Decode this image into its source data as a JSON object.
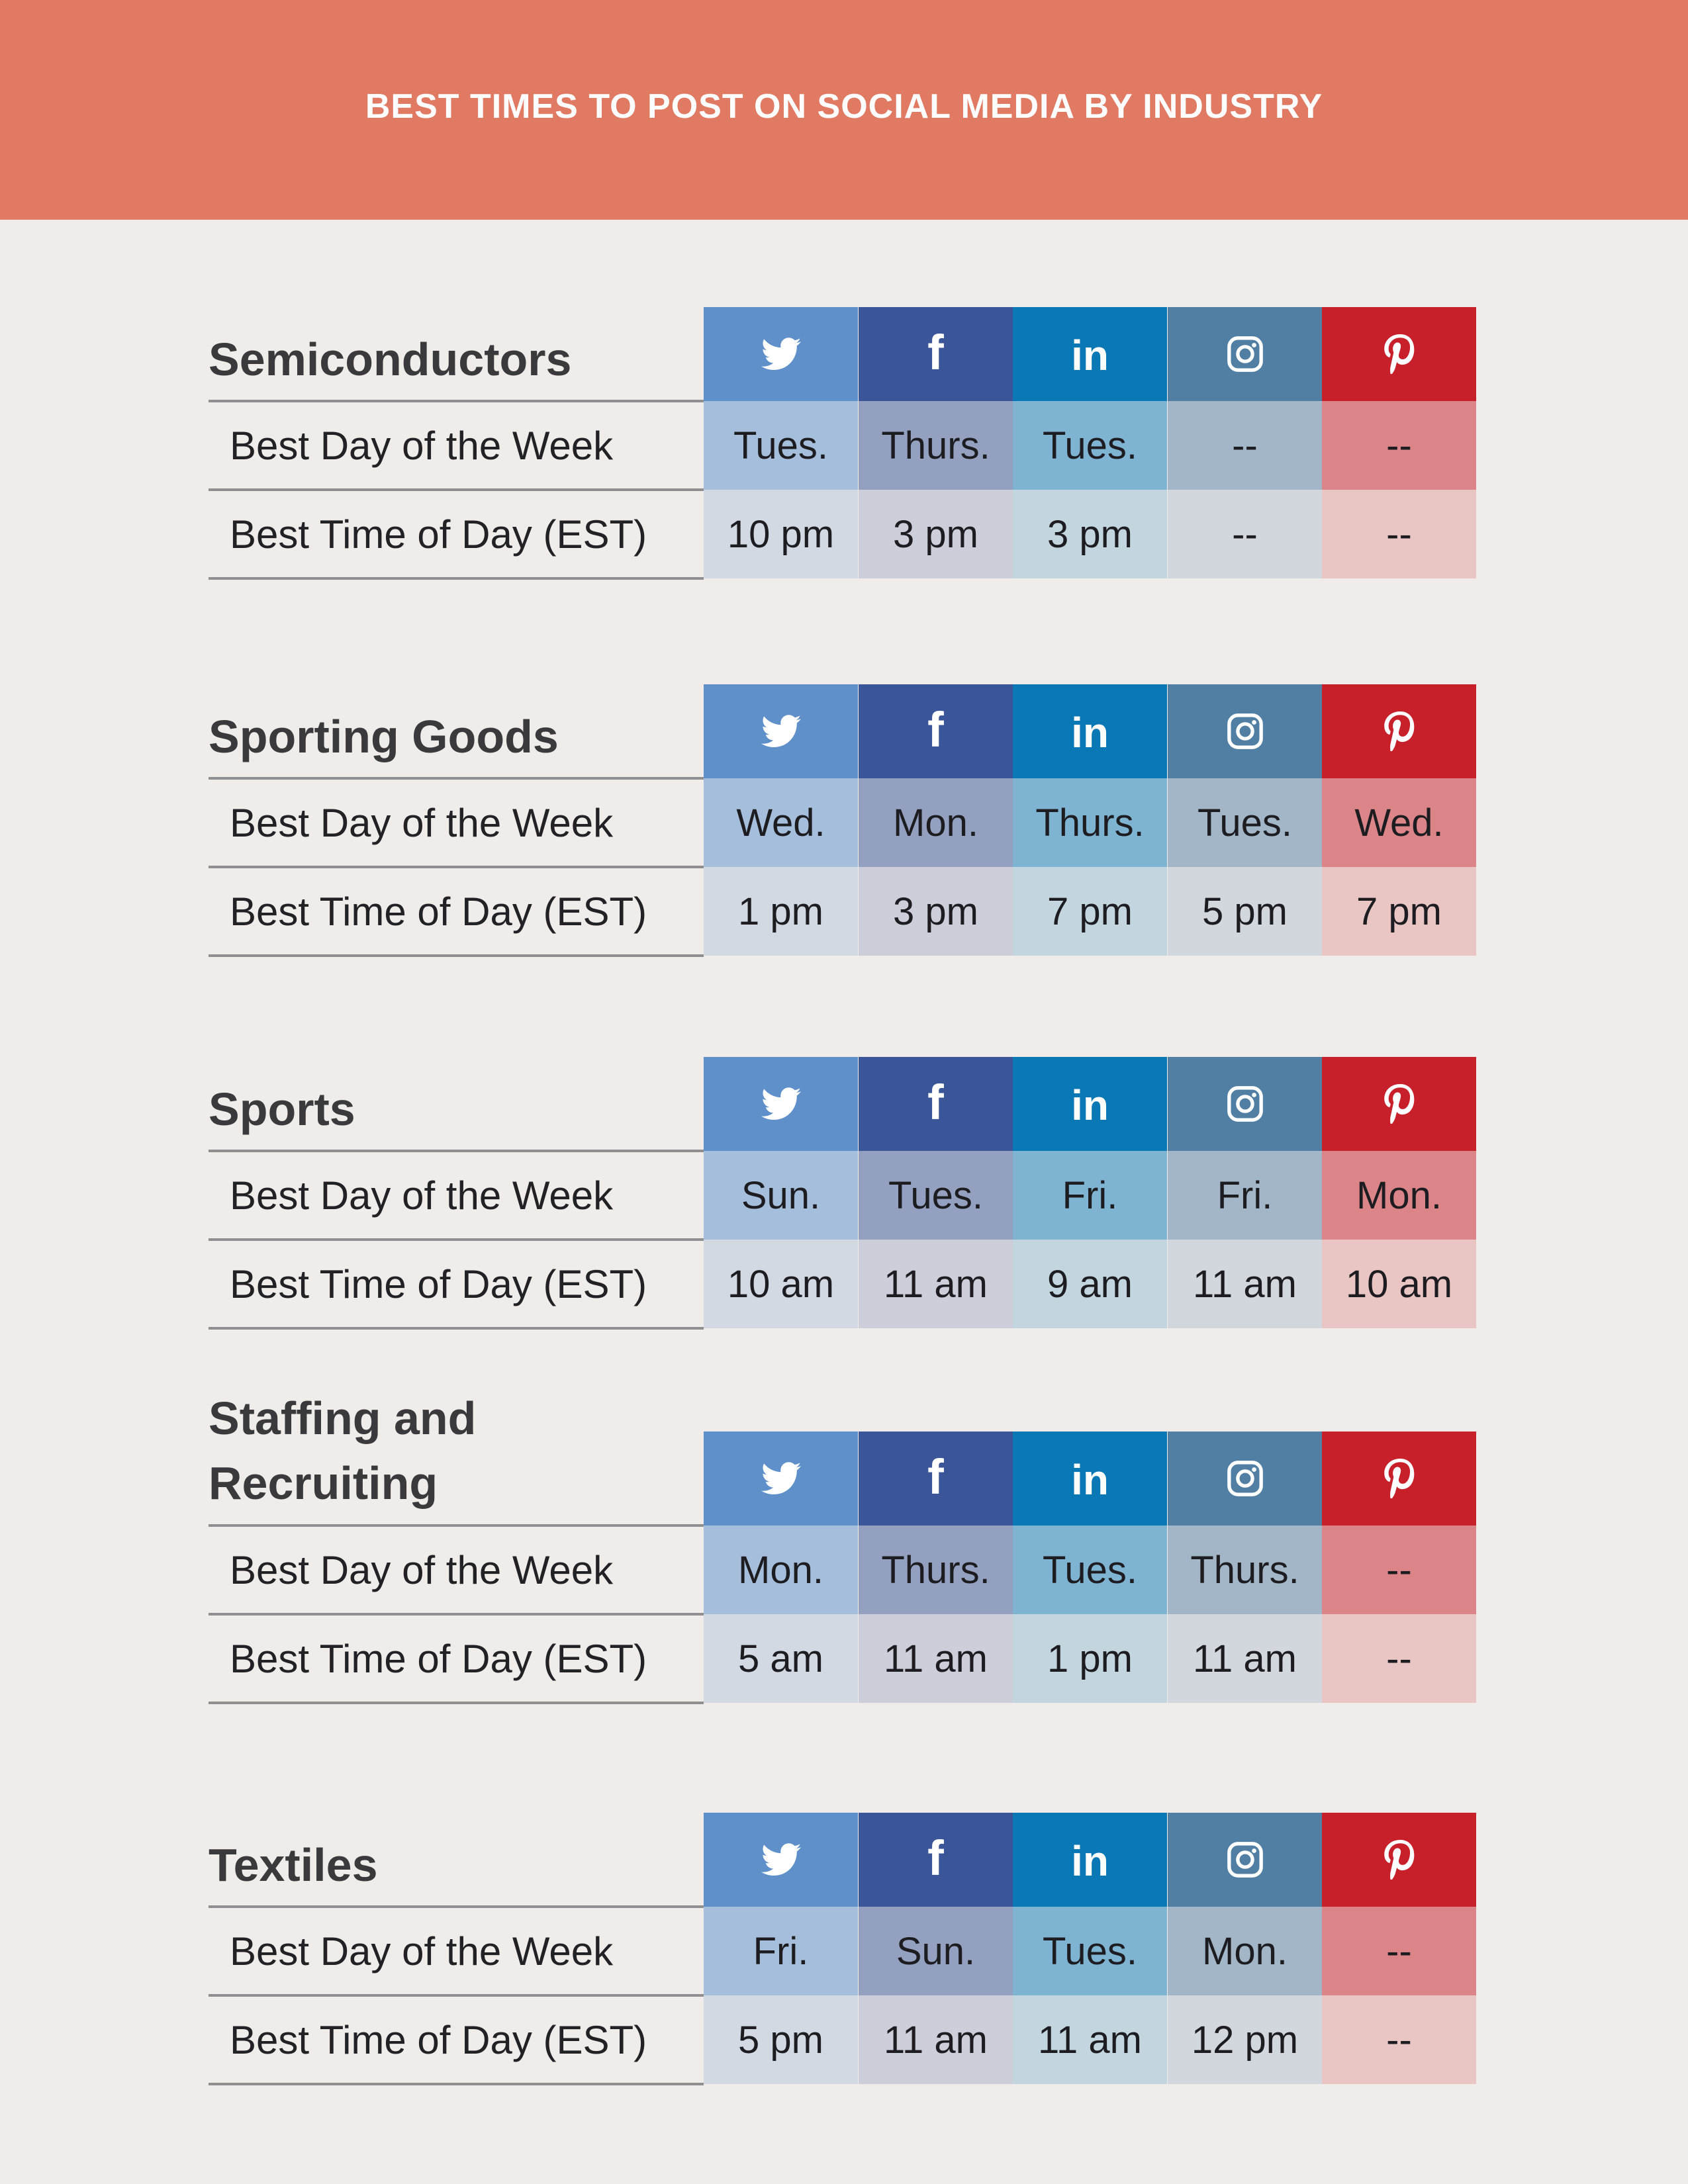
{
  "title": "BEST TIMES TO POST ON SOCIAL MEDIA BY INDUSTRY",
  "row_labels": {
    "day": "Best Day of the Week",
    "time": "Best Time of Day (EST)"
  },
  "platforms": [
    {
      "icon": "twitter-icon",
      "header_color": "#5f90c9",
      "day_color": "#a5bedb",
      "time_color": "#d2d9e2"
    },
    {
      "icon": "facebook-icon",
      "header_color": "#3b5698",
      "day_color": "#93a0c0",
      "time_color": "#ccced9"
    },
    {
      "icon": "linkedin-icon",
      "header_color": "#0a78b5",
      "day_color": "#7eb3d2",
      "time_color": "#c3d6df"
    },
    {
      "icon": "instagram-icon",
      "header_color": "#517fa4",
      "day_color": "#a2b6c7",
      "time_color": "#d2d7dd"
    },
    {
      "icon": "pinterest-icon",
      "header_color": "#c8202b",
      "day_color": "#dc8589",
      "time_color": "#e9c5c4"
    }
  ],
  "icon_glyphs": {
    "facebook": "f",
    "linkedin": "in"
  },
  "industries": [
    {
      "name": "Semiconductors",
      "days": [
        "Tues.",
        "Thurs.",
        "Tues.",
        "--",
        "--"
      ],
      "times": [
        "10 pm",
        "3 pm",
        "3 pm",
        "--",
        "--"
      ]
    },
    {
      "name": "Sporting Goods",
      "days": [
        "Wed.",
        "Mon.",
        "Thurs.",
        "Tues.",
        "Wed."
      ],
      "times": [
        "1 pm",
        "3 pm",
        "7 pm",
        "5 pm",
        "7 pm"
      ]
    },
    {
      "name": "Sports",
      "days": [
        "Sun.",
        "Tues.",
        "Fri.",
        "Fri.",
        "Mon."
      ],
      "times": [
        "10 am",
        "11 am",
        "9 am",
        "11 am",
        "10 am"
      ]
    },
    {
      "name": [
        "Staffing and",
        "Recruiting"
      ],
      "days": [
        "Mon.",
        "Thurs.",
        "Tues.",
        "Thurs.",
        "--"
      ],
      "times": [
        "5 am",
        "11 am",
        "1 pm",
        "11 am",
        "--"
      ]
    },
    {
      "name": "Textiles",
      "days": [
        "Fri.",
        "Sun.",
        "Tues.",
        "Mon.",
        "--"
      ],
      "times": [
        "5 pm",
        "11 am",
        "11 am",
        "12 pm",
        "--"
      ]
    }
  ]
}
